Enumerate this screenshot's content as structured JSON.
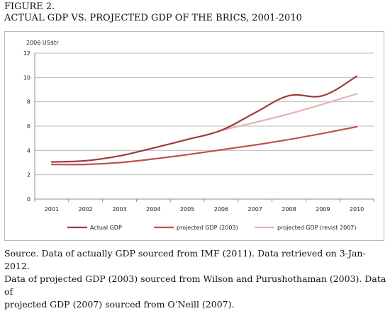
{
  "figure": {
    "label": "FIGURE 2.",
    "title": "ACTUAL GDP VS. PROJECTED GDP OF THE BRICS, 2001-2010"
  },
  "chart_data": {
    "type": "line",
    "ylabel": "2006 US$tr",
    "xlabel": "",
    "x": [
      "2001",
      "2002",
      "2003",
      "2004",
      "2005",
      "2006",
      "2007",
      "2008",
      "2009",
      "2010"
    ],
    "ylim": [
      0,
      12
    ],
    "yticks": [
      0,
      2,
      4,
      6,
      8,
      10,
      12
    ],
    "grid": "horizontal",
    "legend_position": "bottom",
    "series": [
      {
        "name": "Actual GDP",
        "color": "#9c3a3e",
        "values": [
          3.05,
          3.15,
          3.55,
          4.2,
          4.9,
          5.65,
          7.1,
          8.5,
          8.5,
          10.1
        ]
      },
      {
        "name": "projected GDP (2003)",
        "color": "#c0504d",
        "values": [
          2.85,
          2.85,
          3.0,
          3.3,
          3.65,
          4.05,
          4.45,
          4.9,
          5.4,
          5.95
        ]
      },
      {
        "name": "projected GDP (revist 2007)",
        "color": "#e6b1b0",
        "x": [
          "2006",
          "2007",
          "2008",
          "2009",
          "2010"
        ],
        "values": [
          5.65,
          6.3,
          7.0,
          7.8,
          8.65
        ]
      }
    ]
  },
  "source_note": "Source.  Data of actually GDP sourced from IMF (2011).  Data retrieved on 3-Jan-2012.\nData of projected GDP (2003) sourced from Wilson and Purushothaman (2003).  Data of\nprojected GDP (2007) sourced from O’Neill (2007)."
}
